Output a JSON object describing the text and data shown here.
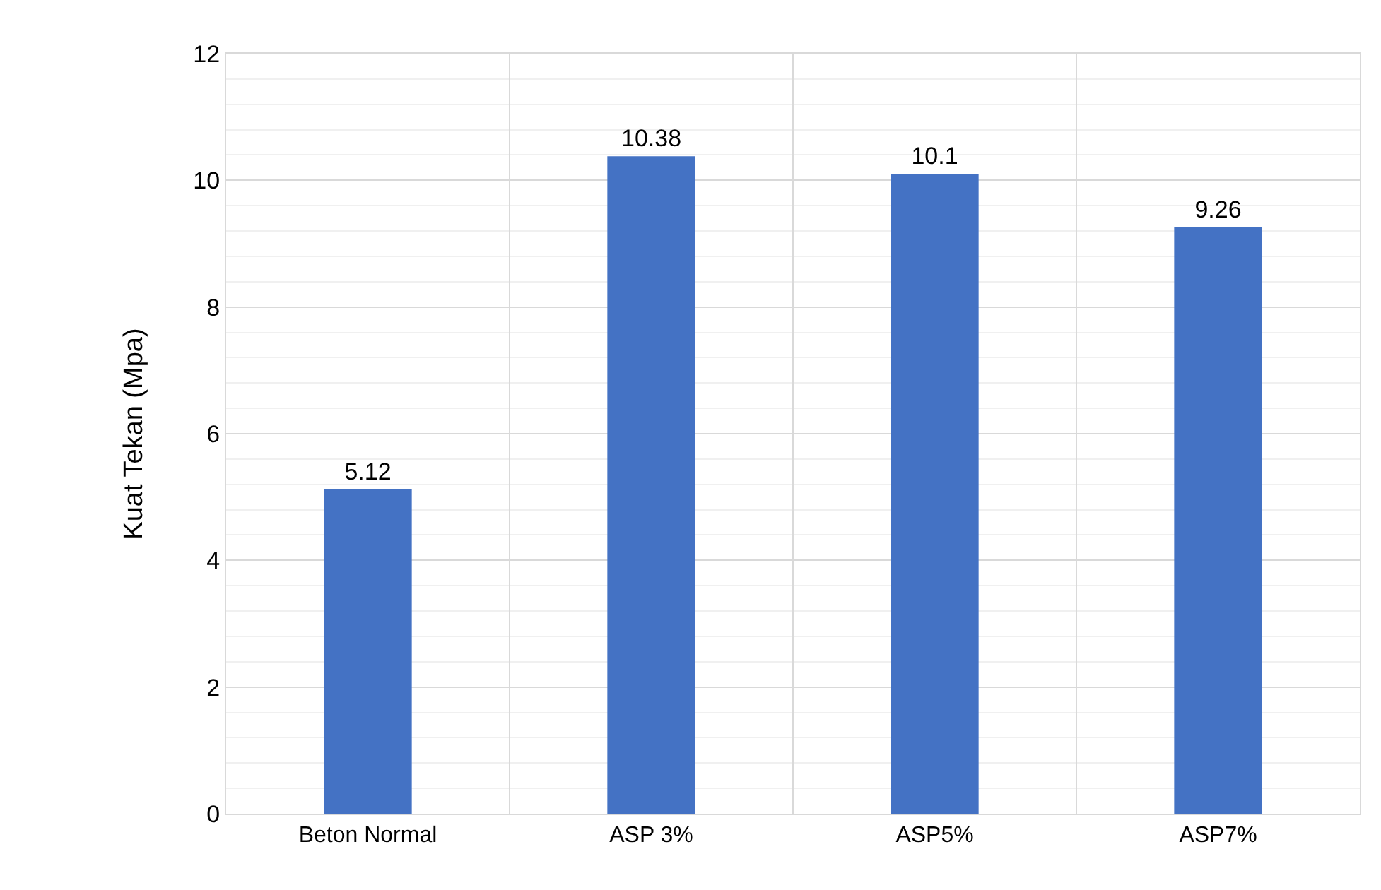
{
  "chart_data": {
    "type": "bar",
    "ylabel": "Kuat Tekan (Mpa)",
    "categories": [
      "Beton Normal",
      "ASP 3%",
      "ASP5%",
      "ASP7%"
    ],
    "values": [
      5.12,
      10.38,
      10.1,
      9.26
    ],
    "color": "#4472c4",
    "ylim": [
      0,
      12
    ],
    "yticks": [
      0,
      2,
      4,
      6,
      8,
      10,
      12
    ],
    "grid": true,
    "data_labels": true
  }
}
